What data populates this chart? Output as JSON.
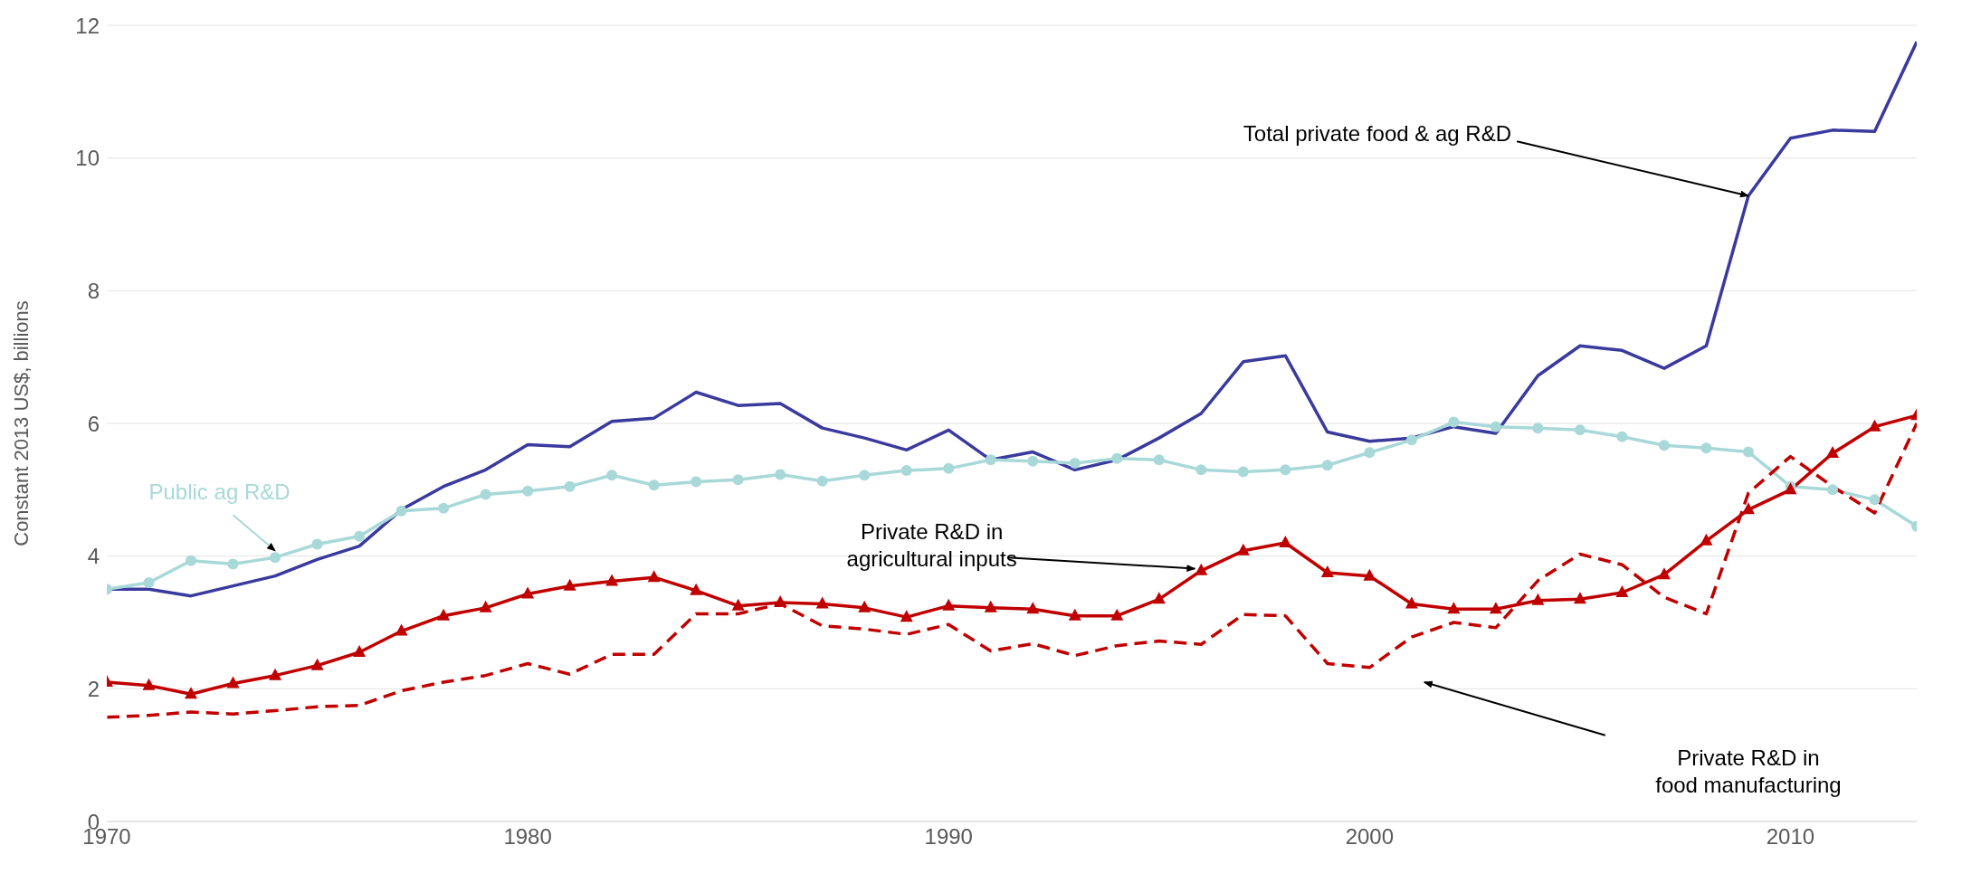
{
  "chart_data": {
    "type": "line",
    "ylabel": "Constant 2013 US$, billions",
    "x": [
      1970,
      1971,
      1972,
      1973,
      1974,
      1975,
      1976,
      1977,
      1978,
      1979,
      1980,
      1981,
      1982,
      1983,
      1984,
      1985,
      1986,
      1987,
      1988,
      1989,
      1990,
      1991,
      1992,
      1993,
      1994,
      1995,
      1996,
      1997,
      1998,
      1999,
      2000,
      2001,
      2002,
      2003,
      2004,
      2005,
      2006,
      2007,
      2008,
      2009,
      2010,
      2011,
      2012,
      2013
    ],
    "xlim": [
      1970,
      2013
    ],
    "xticks": [
      1970,
      1980,
      1990,
      2000,
      2010
    ],
    "ylim": [
      0,
      12
    ],
    "yticks": [
      0,
      2,
      4,
      6,
      8,
      10,
      12
    ],
    "grid": "y",
    "legend": false,
    "annotations": [
      {
        "text": "Total private food & ag R&D",
        "x": 2009,
        "y": 9.43
      },
      "Private R&D in\nfood manufacturing"
    ],
    "series": [
      {
        "color": "#3a3a9e",
        "marker": "none",
        "line_style": "solid",
        "values": [
          3.5,
          3.5,
          3.4,
          3.55,
          3.7,
          3.95,
          4.15,
          4.7,
          5.05,
          5.3,
          5.68,
          5.65,
          6.03,
          6.08,
          6.47,
          6.27,
          6.3,
          5.93,
          5.78,
          5.6,
          5.9,
          5.45,
          5.57,
          5.3,
          5.45,
          5.78,
          6.15,
          6.93,
          7.02,
          5.87,
          5.73,
          5.78,
          5.95,
          5.85,
          6.72,
          7.17,
          7.1,
          6.83,
          7.17,
          9.43,
          10.3,
          10.42,
          10.4,
          11.75
        ]
      },
      {
        "name": "Public ag R&D",
        "color": "#a8d8d8",
        "marker": "circle",
        "line_style": "solid",
        "values": [
          3.5,
          3.6,
          3.93,
          3.88,
          3.98,
          4.18,
          4.3,
          4.68,
          4.72,
          4.93,
          4.98,
          5.05,
          5.22,
          5.07,
          5.12,
          5.15,
          5.23,
          5.13,
          5.22,
          5.29,
          5.32,
          5.45,
          5.43,
          5.4,
          5.47,
          5.45,
          5.3,
          5.27,
          5.3,
          5.37,
          5.56,
          5.75,
          6.02,
          5.95,
          5.93,
          5.9,
          5.8,
          5.67,
          5.63,
          5.57,
          5.05,
          5.0,
          4.85,
          4.45
        ]
      },
      {
        "name": "Private R&D in\nagricultural inputs",
        "color": "#c00000",
        "marker": "triangle",
        "line_style": "solid",
        "values": [
          2.1,
          2.05,
          1.92,
          2.08,
          2.2,
          2.35,
          2.55,
          2.87,
          3.1,
          3.22,
          3.43,
          3.55,
          3.62,
          3.68,
          3.48,
          3.25,
          3.3,
          3.28,
          3.22,
          3.08,
          3.25,
          3.22,
          3.2,
          3.1,
          3.1,
          3.35,
          3.78,
          4.08,
          4.2,
          3.75,
          3.7,
          3.28,
          3.2,
          3.2,
          3.33,
          3.35,
          3.45,
          3.72,
          4.23,
          4.7,
          5.0,
          5.55,
          5.95,
          6.12
        ]
      },
      {
        "color": "#c00000",
        "marker": "none",
        "line_style": "dashed",
        "values": [
          1.57,
          1.6,
          1.65,
          1.62,
          1.67,
          1.73,
          1.75,
          1.97,
          2.1,
          2.2,
          2.38,
          2.22,
          2.52,
          2.52,
          3.13,
          3.13,
          3.28,
          2.95,
          2.9,
          2.82,
          2.97,
          2.57,
          2.68,
          2.5,
          2.65,
          2.72,
          2.67,
          3.12,
          3.1,
          2.38,
          2.32,
          2.78,
          3.0,
          2.92,
          3.63,
          4.03,
          3.87,
          3.38,
          3.13,
          4.95,
          5.5,
          5.05,
          4.65,
          6.0
        ]
      }
    ]
  }
}
